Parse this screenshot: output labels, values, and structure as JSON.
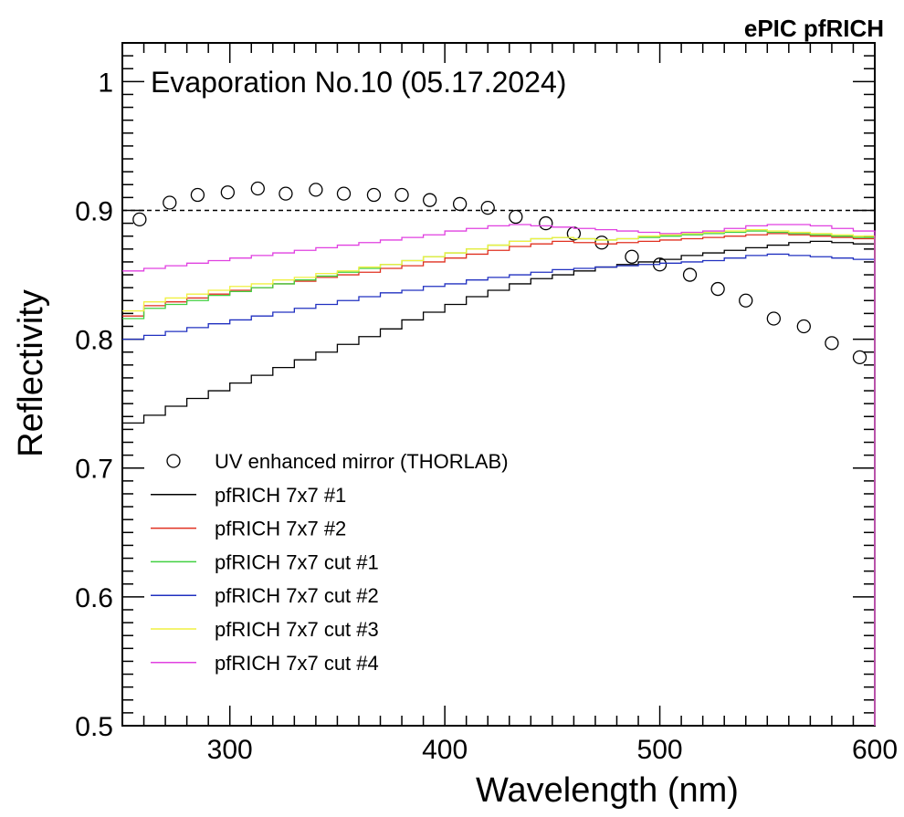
{
  "header": {
    "experiment_label": "ePIC pfRICH"
  },
  "chart_data": {
    "type": "line",
    "title": "",
    "annotation": "Evaporation No.10 (05.17.2024)",
    "xlabel": "Wavelength (nm)",
    "ylabel": "Reflectivity",
    "xlim": [
      250,
      600
    ],
    "ylim": [
      0.5,
      1.03
    ],
    "x_ticks": [
      300,
      400,
      500,
      600
    ],
    "y_ticks": [
      0.5,
      0.6,
      0.7,
      0.8,
      0.9,
      1
    ],
    "y_tick_labels": [
      "0.5",
      "0.6",
      "0.7",
      "0.8",
      "0.9",
      "1"
    ],
    "reference_line": {
      "y": 0.9,
      "style": "dashed"
    },
    "legend_placement": "bottom-left",
    "bin_edges": [
      250,
      260,
      270,
      280,
      290,
      300,
      310,
      320,
      330,
      340,
      350,
      360,
      370,
      380,
      390,
      400,
      410,
      420,
      430,
      440,
      450,
      460,
      470,
      480,
      490,
      500,
      510,
      520,
      530,
      540,
      550,
      560,
      570,
      580,
      590,
      600
    ],
    "series": [
      {
        "name": "UV enhanced mirror (THORLAB)",
        "kind": "markers",
        "color": "#000000",
        "x": [
          258,
          272,
          285,
          299,
          313,
          326,
          340,
          353,
          367,
          380,
          393,
          407,
          420,
          433,
          447,
          460,
          473,
          487,
          500,
          514,
          527,
          540,
          553,
          567,
          580,
          593
        ],
        "values": [
          0.893,
          0.906,
          0.912,
          0.914,
          0.917,
          0.913,
          0.916,
          0.913,
          0.912,
          0.912,
          0.908,
          0.905,
          0.902,
          0.895,
          0.89,
          0.882,
          0.875,
          0.864,
          0.858,
          0.85,
          0.839,
          0.83,
          0.816,
          0.81,
          0.797,
          0.786
        ]
      },
      {
        "name": "pfRICH 7x7 #1",
        "kind": "step",
        "color": "#000000",
        "values": [
          0.735,
          0.741,
          0.748,
          0.754,
          0.76,
          0.766,
          0.772,
          0.778,
          0.784,
          0.79,
          0.796,
          0.802,
          0.808,
          0.815,
          0.821,
          0.827,
          0.833,
          0.838,
          0.843,
          0.847,
          0.85,
          0.853,
          0.856,
          0.858,
          0.86,
          0.862,
          0.865,
          0.867,
          0.869,
          0.871,
          0.873,
          0.875,
          0.876,
          0.875,
          0.874
        ]
      },
      {
        "name": "pfRICH 7x7 #2",
        "kind": "step",
        "color": "#e03020",
        "values": [
          0.818,
          0.826,
          0.829,
          0.832,
          0.835,
          0.838,
          0.84,
          0.843,
          0.845,
          0.848,
          0.85,
          0.852,
          0.855,
          0.857,
          0.86,
          0.863,
          0.866,
          0.869,
          0.872,
          0.874,
          0.876,
          0.875,
          0.874,
          0.875,
          0.876,
          0.877,
          0.878,
          0.879,
          0.88,
          0.881,
          0.882,
          0.881,
          0.88,
          0.879,
          0.878
        ]
      },
      {
        "name": "pfRICH 7x7 cut #1",
        "kind": "step",
        "color": "#40d040",
        "values": [
          0.816,
          0.824,
          0.827,
          0.83,
          0.834,
          0.837,
          0.84,
          0.843,
          0.846,
          0.849,
          0.852,
          0.855,
          0.858,
          0.861,
          0.864,
          0.867,
          0.87,
          0.873,
          0.876,
          0.878,
          0.879,
          0.878,
          0.877,
          0.878,
          0.879,
          0.88,
          0.881,
          0.882,
          0.883,
          0.884,
          0.883,
          0.882,
          0.881,
          0.88,
          0.879
        ]
      },
      {
        "name": "pfRICH 7x7 cut #2",
        "kind": "step",
        "color": "#2030c0",
        "values": [
          0.8,
          0.803,
          0.806,
          0.809,
          0.812,
          0.815,
          0.818,
          0.821,
          0.824,
          0.827,
          0.83,
          0.833,
          0.836,
          0.838,
          0.841,
          0.843,
          0.846,
          0.848,
          0.85,
          0.852,
          0.854,
          0.855,
          0.856,
          0.857,
          0.858,
          0.859,
          0.86,
          0.861,
          0.863,
          0.865,
          0.866,
          0.865,
          0.864,
          0.863,
          0.862
        ]
      },
      {
        "name": "pfRICH 7x7 cut #3",
        "kind": "step",
        "color": "#f0f040",
        "values": [
          0.822,
          0.829,
          0.832,
          0.835,
          0.838,
          0.841,
          0.843,
          0.846,
          0.848,
          0.851,
          0.853,
          0.856,
          0.858,
          0.861,
          0.864,
          0.867,
          0.87,
          0.873,
          0.876,
          0.878,
          0.879,
          0.878,
          0.877,
          0.878,
          0.88,
          0.881,
          0.882,
          0.883,
          0.884,
          0.885,
          0.884,
          0.883,
          0.882,
          0.881,
          0.88
        ]
      },
      {
        "name": "pfRICH 7x7 cut #4",
        "kind": "step",
        "color": "#e040e0",
        "values": [
          0.853,
          0.855,
          0.857,
          0.859,
          0.861,
          0.863,
          0.865,
          0.867,
          0.869,
          0.871,
          0.873,
          0.875,
          0.877,
          0.879,
          0.881,
          0.884,
          0.886,
          0.888,
          0.889,
          0.888,
          0.887,
          0.886,
          0.885,
          0.884,
          0.883,
          0.882,
          0.883,
          0.884,
          0.886,
          0.888,
          0.889,
          0.889,
          0.888,
          0.886,
          0.884
        ]
      }
    ]
  }
}
